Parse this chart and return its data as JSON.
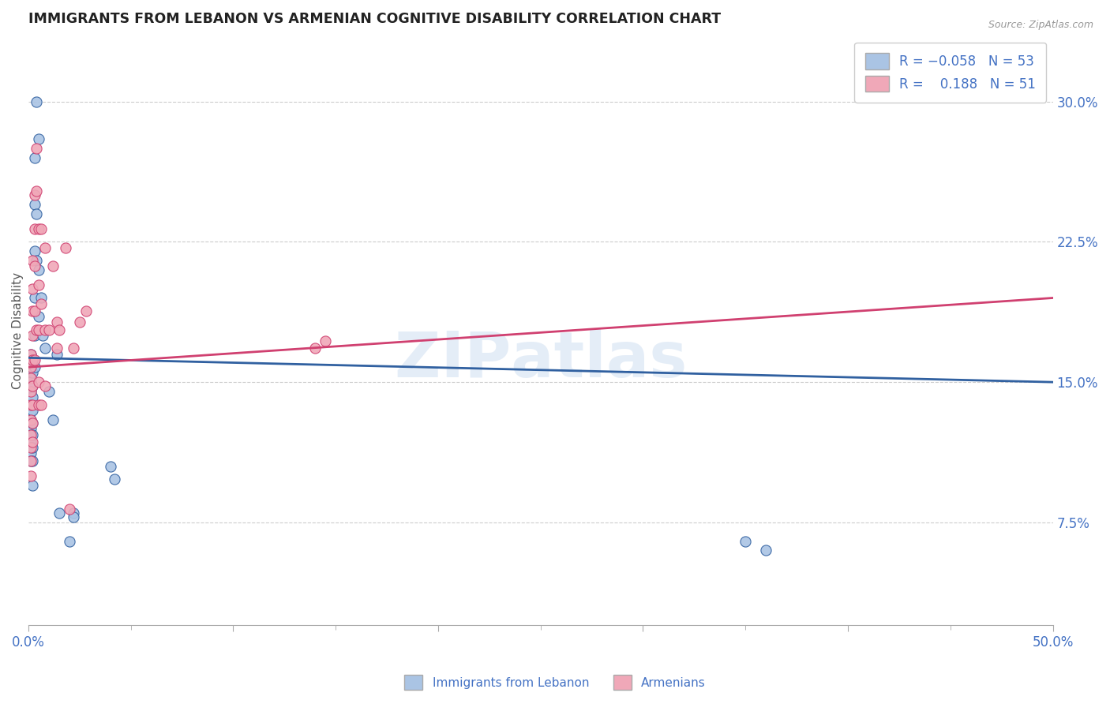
{
  "title": "IMMIGRANTS FROM LEBANON VS ARMENIAN COGNITIVE DISABILITY CORRELATION CHART",
  "source": "Source: ZipAtlas.com",
  "ylabel": "Cognitive Disability",
  "right_yticks": [
    "30.0%",
    "22.5%",
    "15.0%",
    "7.5%"
  ],
  "right_ytick_vals": [
    0.3,
    0.225,
    0.15,
    0.075
  ],
  "xlim": [
    0.0,
    0.5
  ],
  "ylim": [
    0.02,
    0.335
  ],
  "color_blue": "#aac4e4",
  "color_pink": "#f0a8b8",
  "line_blue": "#3060a0",
  "line_pink": "#d04070",
  "title_color": "#222222",
  "axis_color": "#4472c4",
  "blue_scatter": [
    [
      0.001,
      0.165
    ],
    [
      0.001,
      0.158
    ],
    [
      0.001,
      0.155
    ],
    [
      0.001,
      0.15
    ],
    [
      0.001,
      0.148
    ],
    [
      0.001,
      0.145
    ],
    [
      0.001,
      0.142
    ],
    [
      0.001,
      0.138
    ],
    [
      0.001,
      0.135
    ],
    [
      0.001,
      0.13
    ],
    [
      0.001,
      0.128
    ],
    [
      0.001,
      0.125
    ],
    [
      0.001,
      0.122
    ],
    [
      0.001,
      0.118
    ],
    [
      0.001,
      0.115
    ],
    [
      0.001,
      0.112
    ],
    [
      0.001,
      0.108
    ],
    [
      0.002,
      0.162
    ],
    [
      0.002,
      0.155
    ],
    [
      0.002,
      0.148
    ],
    [
      0.002,
      0.142
    ],
    [
      0.002,
      0.135
    ],
    [
      0.002,
      0.128
    ],
    [
      0.002,
      0.122
    ],
    [
      0.002,
      0.115
    ],
    [
      0.002,
      0.108
    ],
    [
      0.002,
      0.095
    ],
    [
      0.003,
      0.27
    ],
    [
      0.003,
      0.245
    ],
    [
      0.003,
      0.22
    ],
    [
      0.003,
      0.195
    ],
    [
      0.003,
      0.175
    ],
    [
      0.003,
      0.158
    ],
    [
      0.004,
      0.3
    ],
    [
      0.004,
      0.24
    ],
    [
      0.004,
      0.215
    ],
    [
      0.005,
      0.28
    ],
    [
      0.005,
      0.21
    ],
    [
      0.005,
      0.185
    ],
    [
      0.006,
      0.195
    ],
    [
      0.007,
      0.175
    ],
    [
      0.008,
      0.168
    ],
    [
      0.01,
      0.145
    ],
    [
      0.012,
      0.13
    ],
    [
      0.014,
      0.165
    ],
    [
      0.015,
      0.08
    ],
    [
      0.02,
      0.065
    ],
    [
      0.022,
      0.08
    ],
    [
      0.022,
      0.078
    ],
    [
      0.04,
      0.105
    ],
    [
      0.042,
      0.098
    ],
    [
      0.35,
      0.065
    ],
    [
      0.36,
      0.06
    ]
  ],
  "pink_scatter": [
    [
      0.001,
      0.165
    ],
    [
      0.001,
      0.158
    ],
    [
      0.001,
      0.152
    ],
    [
      0.001,
      0.145
    ],
    [
      0.001,
      0.138
    ],
    [
      0.001,
      0.13
    ],
    [
      0.001,
      0.122
    ],
    [
      0.001,
      0.115
    ],
    [
      0.001,
      0.108
    ],
    [
      0.001,
      0.1
    ],
    [
      0.002,
      0.215
    ],
    [
      0.002,
      0.2
    ],
    [
      0.002,
      0.188
    ],
    [
      0.002,
      0.175
    ],
    [
      0.002,
      0.162
    ],
    [
      0.002,
      0.148
    ],
    [
      0.002,
      0.138
    ],
    [
      0.002,
      0.128
    ],
    [
      0.002,
      0.118
    ],
    [
      0.003,
      0.25
    ],
    [
      0.003,
      0.232
    ],
    [
      0.003,
      0.212
    ],
    [
      0.003,
      0.188
    ],
    [
      0.003,
      0.162
    ],
    [
      0.004,
      0.275
    ],
    [
      0.004,
      0.252
    ],
    [
      0.004,
      0.178
    ],
    [
      0.005,
      0.232
    ],
    [
      0.005,
      0.202
    ],
    [
      0.005,
      0.178
    ],
    [
      0.005,
      0.15
    ],
    [
      0.005,
      0.138
    ],
    [
      0.006,
      0.232
    ],
    [
      0.006,
      0.192
    ],
    [
      0.006,
      0.138
    ],
    [
      0.008,
      0.222
    ],
    [
      0.008,
      0.178
    ],
    [
      0.008,
      0.148
    ],
    [
      0.01,
      0.178
    ],
    [
      0.012,
      0.212
    ],
    [
      0.014,
      0.182
    ],
    [
      0.014,
      0.168
    ],
    [
      0.015,
      0.178
    ],
    [
      0.018,
      0.222
    ],
    [
      0.02,
      0.082
    ],
    [
      0.022,
      0.168
    ],
    [
      0.025,
      0.182
    ],
    [
      0.028,
      0.188
    ],
    [
      0.14,
      0.168
    ],
    [
      0.145,
      0.172
    ]
  ]
}
